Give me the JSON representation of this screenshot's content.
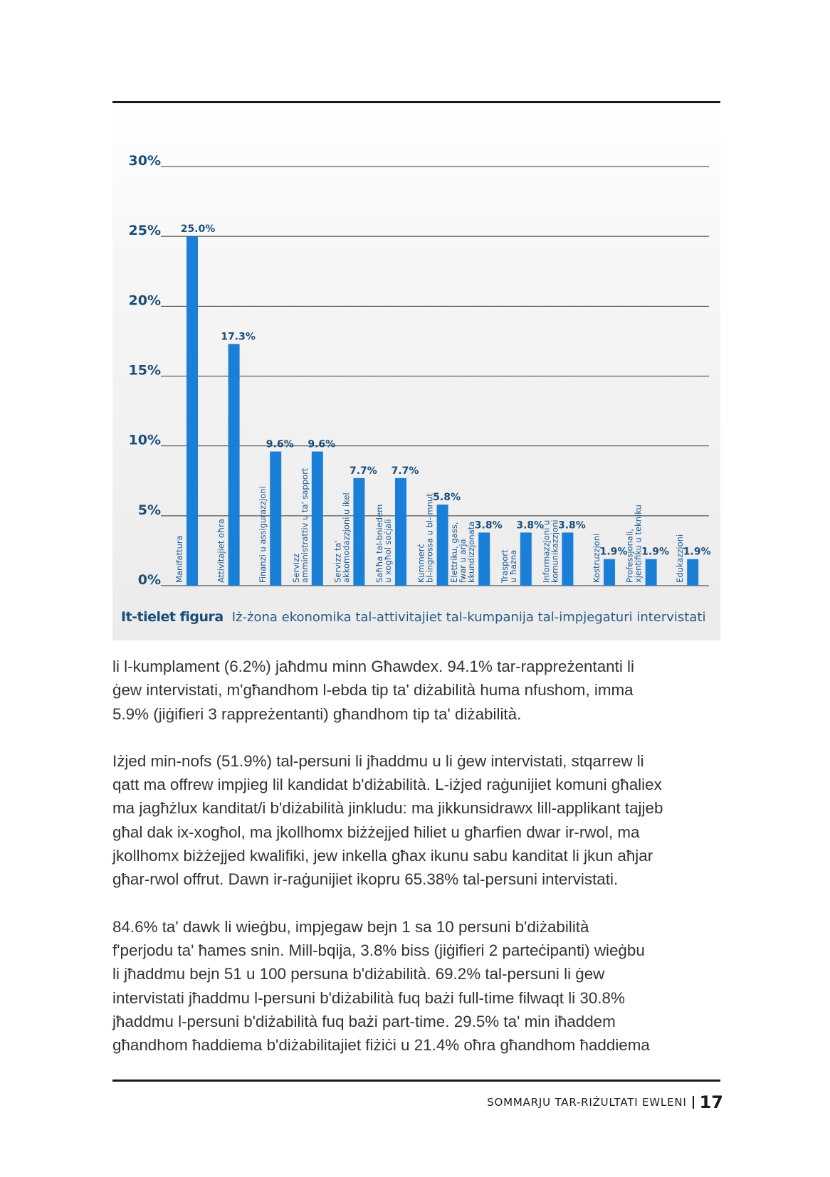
{
  "chart_data": {
    "type": "bar",
    "categories": [
      "Manifattura",
      "Attivitajiet oħra",
      "Finanzi u assigurazzjoni",
      "Servizz amministrattiv u ta' sapport",
      "Servizz ta' akkomodazzjoni u ikel",
      "Saħħa tal-bniedem u xogħol soċjali",
      "Kummerċ bl-ingrossa u bl-imnut",
      "Elettriku, gass, fwar u arja kkundizzjonata",
      "Trasport u ħażna",
      "Informazzjoni u komunikazzjoni",
      "Kostruzzjoni",
      "Professjonali, xjentifiku u tekniku",
      "Edukazzjoni"
    ],
    "values": [
      25.0,
      17.3,
      9.6,
      9.6,
      7.7,
      7.7,
      5.8,
      3.8,
      3.8,
      3.8,
      1.9,
      1.9,
      1.9
    ],
    "value_labels": [
      "25.0%",
      "17.3%",
      "9.6%",
      "9.6%",
      "7.7%",
      "7.7%",
      "5.8%",
      "3.8%",
      "3.8%",
      "3.8%",
      "1.9%",
      "1.9%",
      "1.9%"
    ],
    "category_lines": [
      [
        "Manifattura"
      ],
      [
        "Attivitajiet oħra"
      ],
      [
        "Finanzi u assigurazzjoni"
      ],
      [
        "Servizz",
        "amministrattiv u ta' sapport"
      ],
      [
        "Servizz ta'",
        "akkomodazzjoni u ikel"
      ],
      [
        "Saħħa tal-bniedem",
        "u xogħol soċjali"
      ],
      [
        "Kummerċ",
        "bl-ingrossa u bl-imnut"
      ],
      [
        "Elettriku, gass,",
        "fwar u arja",
        "kkundizzjonata"
      ],
      [
        "Trasport",
        "u ħażna"
      ],
      [
        "Informazzjoni u",
        "komunikazzjoni"
      ],
      [
        "Kostruzzjoni"
      ],
      [
        "Professjonali,",
        "xjentifiku u tekniku"
      ],
      [
        "Edukazzjoni"
      ]
    ],
    "ytick_labels": [
      "0%",
      "5%",
      "10%",
      "15%",
      "20%",
      "25%",
      "30%"
    ],
    "ylim": [
      0,
      30
    ],
    "grid": true,
    "colors": {
      "bar": "#1a7fd6",
      "grid": "#333333",
      "tick_text": "#1a4f7a",
      "value_text": "#1a4f7a",
      "category_text": "#1a5a96"
    }
  },
  "caption": {
    "label": "It-tielet figura",
    "text": "Iż-żona ekonomika tal-attivitajiet tal-kumpanija tal-impjegaturi intervistati"
  },
  "paragraphs": [
    {
      "lines": [
        "li l-kumplament (6.2%) jaħdmu minn Għawdex. 94.1% tar-rappreżentanti li",
        "ġew intervistati, m'għandhom l-ebda tip ta' diżabilità huma nfushom, imma",
        "5.9% (jiġifieri 3 rappreżentanti) għandhom tip ta' diżabilità."
      ]
    },
    {
      "lines": [
        "Iżjed min-nofs (51.9%) tal-persuni li jħaddmu u li ġew intervistati, stqarrew li",
        "qatt ma offrew impjieg lil kandidat b'diżabilità. L-iżjed raġunijiet komuni għaliex",
        "ma jagħżlux kanditat/i b'diżabilità jinkludu: ma jikkunsidrawx lill-applikant tajjeb",
        "għal dak ix-xogħol, ma jkollhomx biżżejjed ħiliet u għarfien dwar ir-rwol, ma",
        "jkollhomx biżżejjed kwalifiki, jew inkella għax ikunu sabu kanditat li jkun aħjar",
        "għar-rwol offrut. Dawn ir-raġunijiet ikopru 65.38% tal-persuni intervistati."
      ]
    },
    {
      "lines": [
        "84.6% ta' dawk li wieġbu, impjegaw bejn 1 sa 10 persuni b'diżabilità",
        "f'perjodu ta' ħames snin. Mill-bqija, 3.8% biss (jiġifieri 2 parteċipanti) wieġbu",
        "li jħaddmu bejn 51 u 100 persuna b'diżabilità. 69.2% tal-persuni li ġew",
        "intervistati jħaddmu l-persuni b'diżabilità fuq bażi full-time filwaqt li 30.8%",
        "jħaddmu l-persuni b'diżabilità fuq bażi part-time. 29.5% ta' min iħaddem",
        "għandhom ħaddiema b'diżabilitajiet fiżiċi u 21.4% oħra għandhom ħaddiema"
      ]
    }
  ],
  "footer": {
    "title": "SOMMARJU TAR-RIŻULTATI EWLENI",
    "page_number": "17"
  }
}
